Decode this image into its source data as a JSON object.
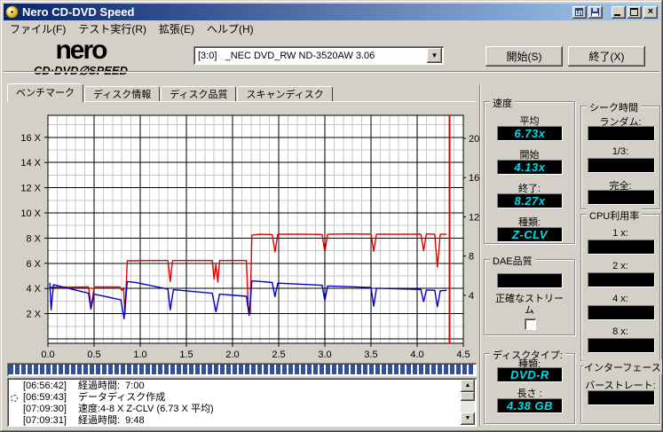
{
  "window": {
    "title": "Nero CD-DVD Speed"
  },
  "icons": {
    "app": "cd-disc-icon",
    "titlebar_tools": [
      "copy-icon",
      "save-icon"
    ],
    "window_controls": [
      "minimize-icon",
      "maximize-icon",
      "close-icon"
    ],
    "combo": "chevron-down-icon",
    "log_entry": "disc-icon"
  },
  "menu": {
    "items": [
      "ファイル(F)",
      "テスト実行(R)",
      "拡張(E)",
      "ヘルプ(H)"
    ]
  },
  "header": {
    "logo_top": "nero",
    "logo_bottom": "CD·DVD∅SPEED",
    "drive_value": "[3:0]   _NEC DVD_RW ND-3520AW 3.06",
    "start": "開始(S)",
    "exit": "終了(X)"
  },
  "tabs": [
    {
      "label": "ベンチマーク",
      "active": true
    },
    {
      "label": "ディスク情報",
      "active": false
    },
    {
      "label": "ディスク品質",
      "active": false
    },
    {
      "label": "スキャンディスク",
      "active": false
    }
  ],
  "chart_data": {
    "type": "line",
    "title": "",
    "xlabel": "",
    "ylabel": "",
    "x_axis": {
      "min": 0,
      "max": 4.5,
      "unit": "GB",
      "ticks": [
        "0.0",
        "0.5",
        "1.0",
        "1.5",
        "2.0",
        "2.5",
        "3.0",
        "3.5",
        "4.0",
        "4.5"
      ],
      "tick_values": [
        0,
        0.5,
        1,
        1.5,
        2,
        2.5,
        3,
        3.5,
        4,
        4.5
      ]
    },
    "y_left": {
      "ticks": [
        "16 X",
        "14 X",
        "12 X",
        "10 X",
        "8 X",
        "6 X",
        "4 X",
        "2 X"
      ],
      "values": [
        16,
        14,
        12,
        10,
        8,
        6,
        4,
        2
      ],
      "min": 0,
      "max": 17.7
    },
    "y_right": {
      "ticks": [
        "20",
        "16",
        "12",
        "8",
        "4"
      ],
      "values": [
        20,
        16,
        12,
        8,
        4
      ]
    },
    "grid": {
      "on": true,
      "minor_x_step": 0.1,
      "major_x_step": 0.5,
      "minor_y_step": 2,
      "major_y_step": 2
    },
    "end_marker_x": 4.35,
    "series": [
      {
        "name": "write-speed-x",
        "color": "#e00000",
        "points": [
          [
            0.02,
            4.1
          ],
          [
            0.44,
            4.12
          ],
          [
            0.46,
            3.0
          ],
          [
            0.475,
            2.75
          ],
          [
            0.5,
            4.12
          ],
          [
            0.78,
            4.12
          ],
          [
            0.8,
            3.85
          ],
          [
            0.82,
            4.05
          ],
          [
            0.835,
            1.95
          ],
          [
            0.86,
            6.2
          ],
          [
            1.1,
            6.22
          ],
          [
            1.3,
            6.22
          ],
          [
            1.325,
            4.55
          ],
          [
            1.35,
            6.22
          ],
          [
            1.78,
            6.22
          ],
          [
            1.8,
            4.75
          ],
          [
            1.82,
            5.9
          ],
          [
            1.84,
            4.5
          ],
          [
            1.86,
            6.22
          ],
          [
            2.15,
            6.22
          ],
          [
            2.17,
            2.6
          ],
          [
            2.19,
            2.05
          ],
          [
            2.21,
            8.25
          ],
          [
            2.3,
            8.3
          ],
          [
            2.43,
            8.28
          ],
          [
            2.46,
            6.9
          ],
          [
            2.49,
            8.3
          ],
          [
            2.7,
            8.32
          ],
          [
            2.97,
            8.29
          ],
          [
            3.0,
            6.9
          ],
          [
            3.03,
            8.3
          ],
          [
            3.25,
            8.33
          ],
          [
            3.5,
            8.31
          ],
          [
            3.53,
            6.95
          ],
          [
            3.56,
            8.32
          ],
          [
            3.8,
            8.3
          ],
          [
            4.04,
            8.31
          ],
          [
            4.07,
            7.0
          ],
          [
            4.1,
            8.33
          ],
          [
            4.19,
            8.3
          ],
          [
            4.22,
            5.7
          ],
          [
            4.25,
            8.3
          ],
          [
            4.32,
            8.3
          ]
        ]
      },
      {
        "name": "spindle-speed",
        "color": "#0000c8",
        "points": [
          [
            0.02,
            4.45
          ],
          [
            0.035,
            2.3
          ],
          [
            0.06,
            4.3
          ],
          [
            0.44,
            3.62
          ],
          [
            0.465,
            2.35
          ],
          [
            0.5,
            3.55
          ],
          [
            0.79,
            3.1
          ],
          [
            0.825,
            1.6
          ],
          [
            0.86,
            4.55
          ],
          [
            0.95,
            4.48
          ],
          [
            1.3,
            3.95
          ],
          [
            1.325,
            2.3
          ],
          [
            1.36,
            3.9
          ],
          [
            1.78,
            3.62
          ],
          [
            1.82,
            2.15
          ],
          [
            1.86,
            3.55
          ],
          [
            2.15,
            3.38
          ],
          [
            2.18,
            1.85
          ],
          [
            2.21,
            4.6
          ],
          [
            2.32,
            4.55
          ],
          [
            2.43,
            4.47
          ],
          [
            2.46,
            3.35
          ],
          [
            2.49,
            4.42
          ],
          [
            2.97,
            4.25
          ],
          [
            3.0,
            3.05
          ],
          [
            3.03,
            4.2
          ],
          [
            3.5,
            4.08
          ],
          [
            3.53,
            2.6
          ],
          [
            3.56,
            4.02
          ],
          [
            4.04,
            3.92
          ],
          [
            4.07,
            2.95
          ],
          [
            4.1,
            3.88
          ],
          [
            4.19,
            3.85
          ],
          [
            4.22,
            2.55
          ],
          [
            4.25,
            3.82
          ],
          [
            4.32,
            3.85
          ]
        ]
      }
    ]
  },
  "speed_panel": {
    "title": "速度",
    "fields": [
      {
        "label": "平均",
        "value": "6.73x"
      },
      {
        "label": "開始",
        "value": "4.13x"
      },
      {
        "label": "終了:",
        "value": "8.27x"
      },
      {
        "label": "種類:",
        "value": "Z-CLV"
      }
    ]
  },
  "dae_panel": {
    "title": "DAE品質",
    "quality_value": "",
    "stream_label": "正確なストリーム",
    "stream_checked": false
  },
  "disc_panel": {
    "title": "ディスクタイプ:",
    "fields": [
      {
        "label": "種類:",
        "value": "DVD-R"
      },
      {
        "label": "長さ :",
        "value": "4.38 GB"
      }
    ]
  },
  "seek_panel": {
    "title": "シーク時間",
    "fields": [
      {
        "label": "ランダム:",
        "value": ""
      },
      {
        "label": "1/3:",
        "value": ""
      },
      {
        "label": "完全:",
        "value": ""
      }
    ]
  },
  "cpu_panel": {
    "title": "CPU利用率",
    "fields": [
      {
        "label": "1 x:",
        "value": ""
      },
      {
        "label": "2 x:",
        "value": ""
      },
      {
        "label": "4 x:",
        "value": ""
      },
      {
        "label": "8 x:",
        "value": ""
      }
    ]
  },
  "interface_panel": {
    "title": "インターフェース",
    "fields": [
      {
        "label": "バーストレート:",
        "value": ""
      }
    ]
  },
  "progress": {
    "percent": 100
  },
  "log": {
    "lines": [
      {
        "icon": "",
        "time": "[06:56:42]",
        "text": "経過時間:  7:00"
      },
      {
        "icon": "disc",
        "time": "[06:59:43]",
        "text": "データディスク作成"
      },
      {
        "icon": "",
        "time": "[07:09:30]",
        "text": "速度:4-8 X Z-CLV (6.73 X 平均)"
      },
      {
        "icon": "",
        "time": "[07:09:31]",
        "text": "経過時間:  9:48"
      }
    ]
  },
  "colors": {
    "titlebar_from": "#0a246a",
    "titlebar_to": "#a6caf0",
    "lcd_bg": "#000000",
    "lcd_text": "#00dcec",
    "series_red": "#e00000",
    "series_blue": "#0000c8",
    "progress_fill": "#2f4f9f",
    "end_marker": "#dd0000"
  }
}
